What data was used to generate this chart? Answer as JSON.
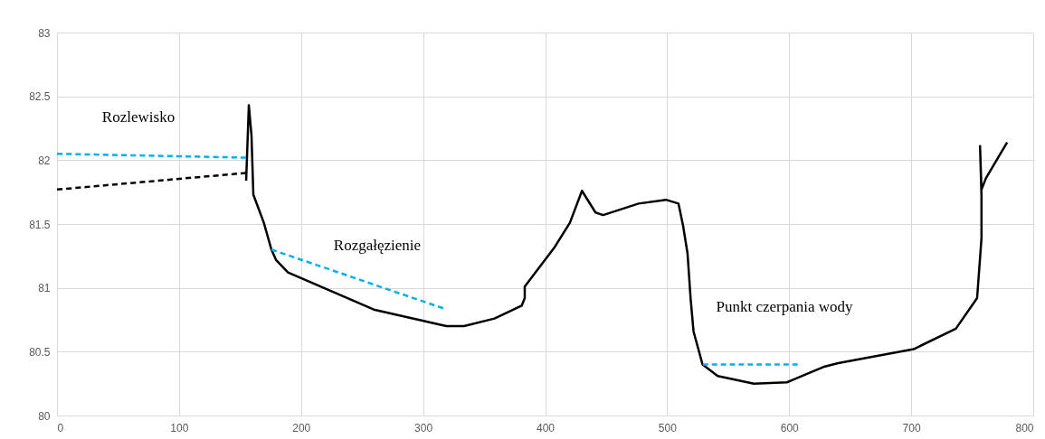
{
  "chart_data": {
    "type": "line",
    "xlim": [
      0,
      800
    ],
    "ylim": [
      80,
      83
    ],
    "xticks": [
      0,
      100,
      200,
      300,
      400,
      500,
      600,
      700,
      800
    ],
    "yticks": [
      80,
      80.5,
      81,
      81.5,
      82,
      82.5,
      83
    ],
    "grid": true,
    "series": [
      {
        "color": "#000000",
        "line_style": "solid",
        "x": [
          155,
          157.2,
          159.4,
          160.9,
          169.5,
          175.7,
          179.4,
          189.3,
          259.6,
          319,
          333.6,
          358.5,
          380.8,
          383.3,
          383.3,
          407.9,
          420.3,
          430.2,
          441.3,
          447.5,
          476.6,
          499,
          509.3,
          513,
          516.7,
          519.2,
          521.6,
          529,
          541.4,
          571,
          598.2,
          603.2,
          627.9,
          640.2,
          702,
          736.6,
          754,
          757.6,
          757.6,
          756.4,
          757.6,
          761.3,
          778.6
        ],
        "values": [
          81.84,
          82.43,
          82.19,
          81.73,
          81.51,
          81.3,
          81.22,
          81.12,
          80.83,
          80.7,
          80.7,
          80.76,
          80.86,
          80.92,
          81.01,
          81.32,
          81.51,
          81.76,
          81.59,
          81.57,
          81.66,
          81.69,
          81.66,
          81.49,
          81.27,
          80.92,
          80.66,
          80.4,
          80.31,
          80.25,
          80.26,
          80.28,
          80.38,
          80.41,
          80.52,
          80.68,
          80.92,
          81.39,
          81.72,
          82.11,
          81.77,
          81.86,
          82.14
        ]
      },
      {
        "color": "#000000",
        "line_style": "dashed",
        "x": [
          0,
          155
        ],
        "values": [
          81.77,
          81.9
        ]
      },
      {
        "color": "#00b0f0",
        "line_style": "dashed",
        "x": [
          0,
          155
        ],
        "values": [
          82.05,
          82.02
        ]
      },
      {
        "color": "#00b0f0",
        "line_style": "dashed",
        "x": [
          175.7,
          316.5
        ],
        "values": [
          81.3,
          80.84
        ]
      },
      {
        "color": "#00b0f0",
        "line_style": "dashed",
        "x": [
          529.3,
          607
        ],
        "values": [
          80.4,
          80.4
        ]
      }
    ],
    "annotations": [
      "Rozlewisko",
      "Rozgałęzienie",
      "Punkt czerpania wody"
    ]
  }
}
